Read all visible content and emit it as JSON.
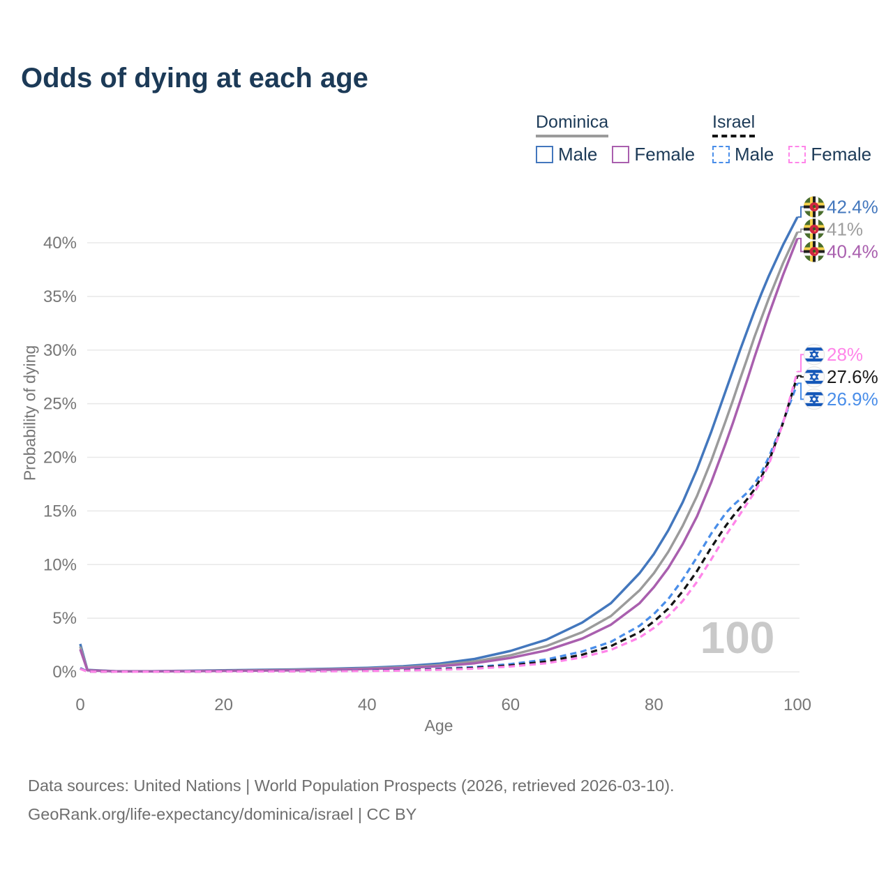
{
  "title": "Odds of dying at each age",
  "legend": {
    "groups": [
      {
        "label": "Dominica",
        "line_style": "solid",
        "underline_color": "#9b9b9b",
        "items": [
          {
            "label": "Male",
            "color": "#4377bd"
          },
          {
            "label": "Female",
            "color": "#a95fae"
          }
        ]
      },
      {
        "label": "Israel",
        "line_style": "dashed",
        "underline_color": "#141414",
        "items": [
          {
            "label": "Male",
            "color": "#4a8ee9"
          },
          {
            "label": "Female",
            "color": "#ff85e9"
          }
        ]
      }
    ]
  },
  "axes": {
    "x_title": "Age",
    "y_title": "Probability of dying",
    "x_ticks": [
      0,
      20,
      40,
      60,
      80,
      100
    ],
    "y_ticks_percent": [
      0,
      5,
      10,
      15,
      20,
      25,
      30,
      35,
      40
    ]
  },
  "hover_age_indicator": "100",
  "chart_data": {
    "type": "line",
    "title": "Odds of dying at each age",
    "xlabel": "Age",
    "ylabel": "Probability of dying",
    "unit": "percent",
    "xlim": [
      0,
      100
    ],
    "ylim": [
      0,
      44.5
    ],
    "grid": "horizontal",
    "legend_position": "top-right",
    "ages": [
      0,
      1,
      5,
      10,
      15,
      20,
      25,
      30,
      35,
      40,
      45,
      50,
      55,
      60,
      65,
      70,
      74,
      78,
      80,
      82,
      84,
      86,
      88,
      90,
      91,
      92,
      93,
      94,
      95,
      96,
      98,
      100
    ],
    "series": [
      {
        "name": "Dominica Male",
        "country": "Dominica",
        "sex": "male",
        "color": "#4377bd",
        "dash": "solid",
        "end_label": "42.4%",
        "values": [
          2.6,
          0.18,
          0.06,
          0.06,
          0.1,
          0.15,
          0.19,
          0.23,
          0.29,
          0.38,
          0.52,
          0.76,
          1.2,
          1.95,
          3.0,
          4.6,
          6.4,
          9.2,
          11.0,
          13.2,
          15.8,
          18.9,
          22.4,
          26.2,
          28.1,
          30.0,
          31.8,
          33.6,
          35.3,
          36.9,
          39.8,
          42.4
        ]
      },
      {
        "name": "Dominica Both sexes",
        "country": "Dominica",
        "sex": "both",
        "color": "#9b9b9b",
        "dash": "solid",
        "end_label": "41%",
        "values": [
          2.35,
          0.16,
          0.05,
          0.05,
          0.08,
          0.12,
          0.15,
          0.19,
          0.24,
          0.31,
          0.43,
          0.62,
          0.97,
          1.55,
          2.4,
          3.7,
          5.2,
          7.6,
          9.2,
          11.2,
          13.6,
          16.4,
          19.7,
          23.4,
          25.3,
          27.3,
          29.2,
          31.2,
          33.0,
          34.8,
          38.1,
          41.0
        ]
      },
      {
        "name": "Dominica Female",
        "country": "Dominica",
        "sex": "female",
        "color": "#a95fae",
        "dash": "solid",
        "end_label": "40.4%",
        "values": [
          2.1,
          0.14,
          0.04,
          0.04,
          0.06,
          0.09,
          0.12,
          0.15,
          0.2,
          0.26,
          0.36,
          0.52,
          0.8,
          1.3,
          2.0,
          3.1,
          4.4,
          6.4,
          7.9,
          9.7,
          11.9,
          14.5,
          17.7,
          21.3,
          23.2,
          25.2,
          27.2,
          29.3,
          31.3,
          33.3,
          37.0,
          40.4
        ]
      },
      {
        "name": "Israel Male",
        "country": "Israel",
        "sex": "male",
        "color": "#4a8ee9",
        "dash": "dashed",
        "end_label": "26.9%",
        "values": [
          0.35,
          0.03,
          0.01,
          0.01,
          0.03,
          0.05,
          0.06,
          0.07,
          0.09,
          0.12,
          0.18,
          0.28,
          0.45,
          0.72,
          1.15,
          1.9,
          2.8,
          4.3,
          5.4,
          6.8,
          8.6,
          10.7,
          12.9,
          14.8,
          15.5,
          16.1,
          16.7,
          17.5,
          18.6,
          20.0,
          23.3,
          26.9
        ]
      },
      {
        "name": "Israel Both sexes",
        "country": "Israel",
        "sex": "both",
        "color": "#141414",
        "dash": "dashed",
        "end_label": "27.6%",
        "values": [
          0.3,
          0.025,
          0.01,
          0.01,
          0.02,
          0.04,
          0.05,
          0.06,
          0.07,
          0.1,
          0.15,
          0.23,
          0.37,
          0.6,
          0.96,
          1.6,
          2.4,
          3.7,
          4.7,
          5.9,
          7.5,
          9.4,
          11.6,
          13.6,
          14.5,
          15.3,
          16.1,
          17.0,
          18.2,
          19.6,
          23.2,
          27.6
        ]
      },
      {
        "name": "Israel Female",
        "country": "Israel",
        "sex": "female",
        "color": "#ff85e9",
        "dash": "dashed",
        "end_label": "28%",
        "values": [
          0.28,
          0.02,
          0.01,
          0.01,
          0.02,
          0.03,
          0.04,
          0.05,
          0.06,
          0.08,
          0.12,
          0.19,
          0.3,
          0.5,
          0.8,
          1.35,
          2.05,
          3.2,
          4.1,
          5.2,
          6.6,
          8.4,
          10.5,
          12.7,
          13.7,
          14.7,
          15.7,
          16.7,
          17.9,
          19.3,
          23.2,
          28.0
        ]
      }
    ],
    "end_labels": [
      {
        "text": "42.4%",
        "value_percent": 42.4,
        "color": "#4377bd",
        "flag": "dominica"
      },
      {
        "text": "41%",
        "value_percent": 41.0,
        "color": "#9e9e9e",
        "flag": "dominica"
      },
      {
        "text": "40.4%",
        "value_percent": 40.4,
        "color": "#a95fae",
        "flag": "dominica"
      },
      {
        "text": "28%",
        "value_percent": 28.0,
        "color": "#ff85e9",
        "flag": "israel"
      },
      {
        "text": "27.6%",
        "value_percent": 27.6,
        "color": "#1a1a1a",
        "flag": "israel"
      },
      {
        "text": "26.9%",
        "value_percent": 26.9,
        "color": "#4a8ee9",
        "flag": "israel"
      }
    ]
  },
  "footer": {
    "line1": "Data sources: United Nations | World Population Prospects (2026, retrieved 2026-03-10).",
    "line2": "GeoRank.org/life-expectancy/dominica/israel | CC BY"
  }
}
